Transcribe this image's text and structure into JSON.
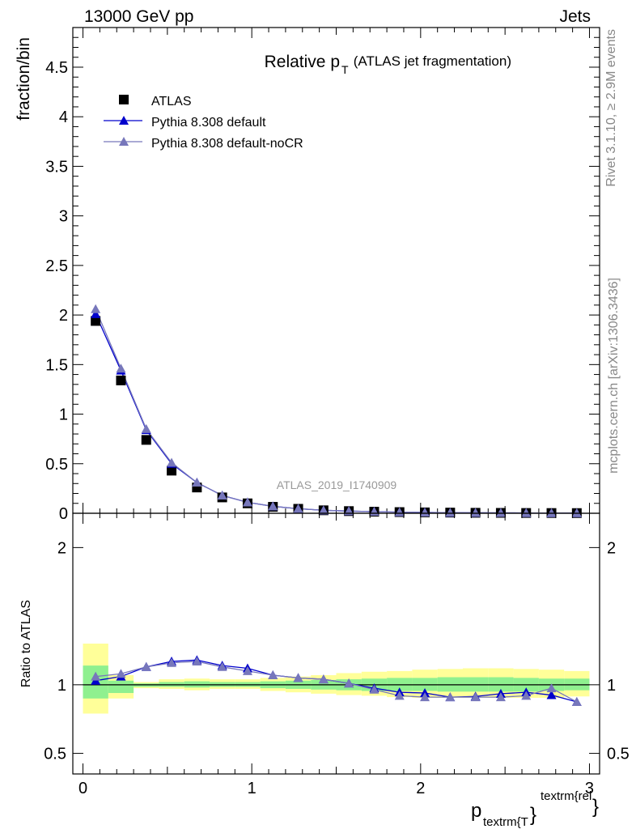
{
  "header": {
    "left": "13000 GeV pp",
    "right": "Jets"
  },
  "side_text": {
    "rivet": "Rivet 3.1.10, ≥ 2.9M events",
    "mcplots": "mcplots.cern.ch [arXiv:1306.3436]"
  },
  "chart_data": [
    {
      "type": "scatter",
      "panel": "main",
      "title_main": "Relative p",
      "title_sub": "T",
      "title_rest": " (ATLAS jet fragmentation)",
      "ylabel": "fraction/bin",
      "watermark": "ATLAS_2019_I1740909",
      "ylim": [
        0,
        4.9
      ],
      "xlim": [
        -0.06,
        3.06
      ],
      "yticks": [
        "0",
        "0.5",
        "1",
        "1.5",
        "2",
        "2.5",
        "3",
        "3.5",
        "4",
        "4.5"
      ],
      "x": [
        0.075,
        0.225,
        0.375,
        0.525,
        0.675,
        0.825,
        0.975,
        1.125,
        1.275,
        1.425,
        1.575,
        1.725,
        1.875,
        2.025,
        2.175,
        2.325,
        2.475,
        2.625,
        2.775,
        2.925
      ],
      "legend": [
        {
          "name": "ATLAS",
          "color": "#000000",
          "marker": "square"
        },
        {
          "name": "Pythia 8.308 default",
          "color": "#0000cc",
          "marker": "triangle"
        },
        {
          "name": "Pythia 8.308 default-noCR",
          "color": "#7777bb",
          "marker": "triangle"
        }
      ],
      "series": [
        {
          "name": "ATLAS",
          "values": [
            1.94,
            1.34,
            0.74,
            0.43,
            0.26,
            0.16,
            0.1,
            0.065,
            0.045,
            0.03,
            0.022,
            0.016,
            0.012,
            0.009,
            0.007,
            0.005,
            0.004,
            0.003,
            0.0025,
            0.002
          ]
        },
        {
          "name": "Pythia 8.308 default",
          "values": [
            2.01,
            1.44,
            0.84,
            0.5,
            0.31,
            0.18,
            0.11,
            0.07,
            0.046,
            0.03,
            0.022,
            0.016,
            0.011,
            0.009,
            0.006,
            0.005,
            0.004,
            0.003,
            0.002,
            0.002
          ]
        },
        {
          "name": "Pythia 8.308 default-noCR",
          "values": [
            2.06,
            1.46,
            0.85,
            0.51,
            0.31,
            0.18,
            0.11,
            0.07,
            0.046,
            0.03,
            0.022,
            0.016,
            0.011,
            0.008,
            0.006,
            0.005,
            0.004,
            0.003,
            0.0025,
            0.002
          ]
        }
      ]
    },
    {
      "type": "scatter",
      "panel": "ratio",
      "ylabel": "Ratio to ATLAS",
      "xlabel_main": "p",
      "xlabel_sub": "textrm{T",
      "xlabel_brace": "}",
      "xlabel_sup": "textrm{rel",
      "xlabel_sup_brace": "}",
      "ylim": [
        0.35,
        2.25
      ],
      "xlim": [
        -0.06,
        3.06
      ],
      "yticks": [
        0.5,
        1,
        2
      ],
      "yticklabels": [
        "0.5",
        "1",
        "2"
      ],
      "xticks": [
        0,
        1,
        2,
        3
      ],
      "xticklabels": [
        "0",
        "1",
        "2",
        "3"
      ],
      "bin_edges": [
        0,
        0.15,
        0.3,
        0.45,
        0.6,
        0.75,
        0.9,
        1.05,
        1.2,
        1.35,
        1.5,
        1.65,
        1.8,
        1.95,
        2.1,
        2.25,
        2.4,
        2.55,
        2.7,
        2.85,
        3.0
      ],
      "band_inner_lo": [
        0.9,
        0.94,
        0.985,
        0.985,
        0.98,
        0.985,
        0.985,
        0.975,
        0.97,
        0.965,
        0.96,
        0.955,
        0.955,
        0.955,
        0.95,
        0.95,
        0.95,
        0.95,
        0.955,
        0.96
      ],
      "band_inner_hi": [
        1.14,
        1.03,
        1.01,
        1.02,
        1.025,
        1.02,
        1.02,
        1.025,
        1.03,
        1.035,
        1.04,
        1.045,
        1.05,
        1.05,
        1.055,
        1.055,
        1.055,
        1.05,
        1.045,
        1.045
      ],
      "band_outer_lo": [
        0.79,
        0.9,
        0.975,
        0.97,
        0.96,
        0.97,
        0.97,
        0.955,
        0.945,
        0.935,
        0.925,
        0.92,
        0.91,
        0.905,
        0.905,
        0.905,
        0.905,
        0.905,
        0.905,
        0.915
      ],
      "band_outer_hi": [
        1.3,
        1.07,
        1.02,
        1.04,
        1.045,
        1.04,
        1.04,
        1.05,
        1.06,
        1.07,
        1.085,
        1.095,
        1.1,
        1.11,
        1.115,
        1.12,
        1.12,
        1.115,
        1.11,
        1.1
      ],
      "x": [
        0.075,
        0.225,
        0.375,
        0.525,
        0.675,
        0.825,
        0.975,
        1.125,
        1.275,
        1.425,
        1.575,
        1.725,
        1.875,
        2.025,
        2.175,
        2.325,
        2.475,
        2.625,
        2.775,
        2.925
      ],
      "series": [
        {
          "name": "Pythia 8.308 default",
          "color": "#0000cc",
          "values": [
            1.03,
            1.06,
            1.13,
            1.17,
            1.18,
            1.14,
            1.12,
            1.07,
            1.05,
            1.04,
            1.01,
            0.975,
            0.945,
            0.94,
            0.91,
            0.915,
            0.935,
            0.945,
            0.925,
            0.875
          ],
          "errors": [
            0.005,
            0.005,
            0.005,
            0.005,
            0.006,
            0.006,
            0.007,
            0.008,
            0.008,
            0.009,
            0.01,
            0.012,
            0.012,
            0.014,
            0.016,
            0.018,
            0.02,
            0.024,
            0.026,
            0.028
          ]
        },
        {
          "name": "Pythia 8.308 default-noCR",
          "color": "#7777bb",
          "values": [
            1.06,
            1.08,
            1.13,
            1.16,
            1.17,
            1.13,
            1.1,
            1.07,
            1.05,
            1.04,
            1.01,
            0.965,
            0.92,
            0.91,
            0.91,
            0.91,
            0.91,
            0.92,
            0.975,
            0.875
          ],
          "errors": [
            0.005,
            0.005,
            0.005,
            0.005,
            0.006,
            0.006,
            0.007,
            0.008,
            0.008,
            0.009,
            0.01,
            0.012,
            0.012,
            0.014,
            0.016,
            0.018,
            0.02,
            0.024,
            0.03,
            0.028
          ]
        }
      ]
    }
  ],
  "colors": {
    "band_inner": "#8ff08f",
    "band_outer": "#ffff99",
    "atlas": "#000000",
    "default": "#0000cc",
    "nocr": "#7777bb",
    "side_text": "#888888",
    "watermark": "#999999"
  }
}
